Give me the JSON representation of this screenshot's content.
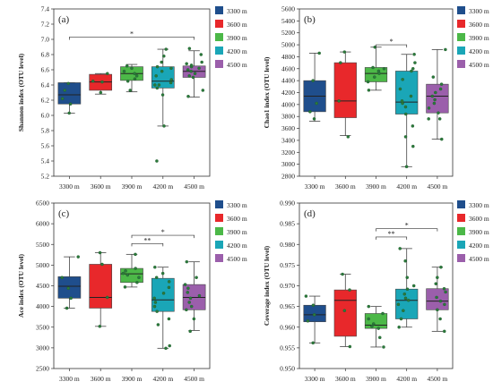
{
  "chart_data": [
    {
      "type": "box",
      "panel_label": "(a)",
      "ylabel": "Shannon index (OTU level)",
      "categories": [
        "3300 m",
        "3600 m",
        "3900 m",
        "4200 m",
        "4500 m"
      ],
      "colors": [
        "#1f4e8c",
        "#e8282b",
        "#4cb848",
        "#1aa6b7",
        "#9b5fab"
      ],
      "ylim": [
        5.2,
        7.4
      ],
      "yticks": [
        5.2,
        5.4,
        5.6,
        5.8,
        6.0,
        6.2,
        6.4,
        6.6,
        6.8,
        7.0,
        7.2,
        7.4
      ],
      "tick_decimals": 1,
      "boxes": [
        {
          "q1": 6.15,
          "median": 6.27,
          "q3": 6.43,
          "lo": 6.03,
          "hi": 6.43
        },
        {
          "q1": 6.33,
          "median": 6.44,
          "q3": 6.54,
          "lo": 6.28,
          "hi": 6.55
        },
        {
          "q1": 6.46,
          "median": 6.55,
          "q3": 6.64,
          "lo": 6.31,
          "hi": 6.67
        },
        {
          "q1": 6.36,
          "median": 6.45,
          "q3": 6.64,
          "lo": 5.86,
          "hi": 6.87
        },
        {
          "q1": 6.5,
          "median": 6.58,
          "q3": 6.65,
          "lo": 6.24,
          "hi": 6.85
        }
      ],
      "points": [
        [
          6.03,
          6.15,
          6.22,
          6.33,
          6.42
        ],
        [
          6.3,
          6.45,
          6.55,
          6.44
        ],
        [
          6.33,
          6.45,
          6.52,
          6.55,
          6.58,
          6.62,
          6.65,
          6.48
        ],
        [
          5.4,
          5.86,
          6.27,
          6.36,
          6.4,
          6.43,
          6.47,
          6.52,
          6.58,
          6.62,
          6.64,
          6.7,
          6.78,
          6.87,
          6.4
        ],
        [
          6.25,
          6.33,
          6.5,
          6.52,
          6.55,
          6.58,
          6.6,
          6.62,
          6.64,
          6.66,
          6.68,
          6.7,
          6.88,
          6.8
        ]
      ],
      "outliers": [
        [],
        [],
        [],
        [
          5.4
        ],
        []
      ],
      "brackets": [
        {
          "from": 0,
          "to": 4,
          "y": 7.03,
          "label": "*"
        }
      ],
      "legend": [
        "3300 m",
        "3600 m",
        "3900 m",
        "4200 m",
        "4500 m"
      ]
    },
    {
      "type": "box",
      "panel_label": "(b)",
      "ylabel": "Chao1 index (OTU level)",
      "categories": [
        "3300 m",
        "3600 m",
        "3900 m",
        "4200 m",
        "4500 m"
      ],
      "colors": [
        "#1f4e8c",
        "#e8282b",
        "#4cb848",
        "#1aa6b7",
        "#9b5fab"
      ],
      "ylim": [
        2800,
        5600
      ],
      "yticks": [
        2800,
        3000,
        3200,
        3400,
        3600,
        3800,
        4000,
        4200,
        4400,
        4600,
        4800,
        5000,
        5200,
        5400,
        5600
      ],
      "tick_decimals": 0,
      "boxes": [
        {
          "q1": 3880,
          "median": 4140,
          "q3": 4400,
          "lo": 3720,
          "hi": 4860
        },
        {
          "q1": 3780,
          "median": 4060,
          "q3": 4700,
          "lo": 3480,
          "hi": 4880
        },
        {
          "q1": 4380,
          "median": 4520,
          "q3": 4620,
          "lo": 4240,
          "hi": 4960
        },
        {
          "q1": 3840,
          "median": 4040,
          "q3": 4560,
          "lo": 2960,
          "hi": 4840
        },
        {
          "q1": 3860,
          "median": 4140,
          "q3": 4340,
          "lo": 3420,
          "hi": 4920
        }
      ],
      "points": [
        [
          3760,
          3880,
          4020,
          4400,
          4860
        ],
        [
          3460,
          4060,
          4700,
          4880
        ],
        [
          4240,
          4380,
          4460,
          4520,
          4560,
          4600,
          4620,
          4960
        ],
        [
          2960,
          3460,
          3640,
          3840,
          3960,
          4020,
          4060,
          4140,
          4260,
          4420,
          4560,
          4600,
          4700,
          4840,
          3300
        ],
        [
          3420,
          3760,
          3860,
          3940,
          4020,
          4080,
          4140,
          4200,
          4260,
          4340,
          4460,
          4920,
          3760
        ]
      ],
      "outliers": [
        [],
        [],
        [],
        [],
        []
      ],
      "brackets": [
        {
          "from": 2,
          "to": 3,
          "y": 5000,
          "label": "*"
        }
      ],
      "legend": [
        "3300 m",
        "3600 m",
        "3900 m",
        "4200 m",
        "4500 m"
      ]
    },
    {
      "type": "box",
      "panel_label": "(c)",
      "ylabel": "Ace index (OTU level)",
      "categories": [
        "3300 m",
        "3600 m",
        "3900 m",
        "4200 m",
        "4500 m"
      ],
      "colors": [
        "#1f4e8c",
        "#e8282b",
        "#4cb848",
        "#1aa6b7",
        "#9b5fab"
      ],
      "ylim": [
        2500,
        6500
      ],
      "yticks": [
        2500,
        3000,
        3500,
        4000,
        4500,
        5000,
        5500,
        6000,
        6500
      ],
      "tick_decimals": 0,
      "boxes": [
        {
          "q1": 4200,
          "median": 4490,
          "q3": 4720,
          "lo": 3960,
          "hi": 5200
        },
        {
          "q1": 3960,
          "median": 4220,
          "q3": 5020,
          "lo": 3520,
          "hi": 5300
        },
        {
          "q1": 4580,
          "median": 4790,
          "q3": 4920,
          "lo": 4470,
          "hi": 5260
        },
        {
          "q1": 3880,
          "median": 4160,
          "q3": 4680,
          "lo": 2990,
          "hi": 4950
        },
        {
          "q1": 3920,
          "median": 4220,
          "q3": 4530,
          "lo": 3420,
          "hi": 5080
        }
      ],
      "points": [
        [
          3960,
          4200,
          4440,
          4700,
          5200
        ],
        [
          3520,
          4220,
          5020,
          5300
        ],
        [
          4470,
          4580,
          4700,
          4760,
          4800,
          4860,
          4920,
          5260
        ],
        [
          2990,
          3050,
          3560,
          3700,
          3880,
          4000,
          4100,
          4200,
          4320,
          4460,
          4600,
          4700,
          4800,
          4950
        ],
        [
          3400,
          3700,
          3920,
          4000,
          4100,
          4200,
          4260,
          4340,
          4440,
          4530,
          4700,
          5080
        ]
      ],
      "outliers": [
        [],
        [],
        [],
        [],
        []
      ],
      "brackets": [
        {
          "from": 2,
          "to": 3,
          "y": 5520,
          "label": "**"
        },
        {
          "from": 2,
          "to": 4,
          "y": 5720,
          "label": "*"
        }
      ],
      "legend": [
        "3300 m",
        "3600 m",
        "3900 m",
        "4200 m",
        "4500 m"
      ]
    },
    {
      "type": "box",
      "panel_label": "(d)",
      "ylabel": "Coverage index (OTU level)",
      "categories": [
        "3300 m",
        "3600 m",
        "3900 m",
        "4200 m",
        "4500 m"
      ],
      "colors": [
        "#1f4e8c",
        "#e8282b",
        "#4cb848",
        "#1aa6b7",
        "#9b5fab"
      ],
      "ylim": [
        0.95,
        0.99
      ],
      "yticks": [
        0.95,
        0.955,
        0.96,
        0.965,
        0.97,
        0.975,
        0.98,
        0.985,
        0.99
      ],
      "tick_decimals": 3,
      "boxes": [
        {
          "q1": 0.9613,
          "median": 0.963,
          "q3": 0.9653,
          "lo": 0.9562,
          "hi": 0.9675
        },
        {
          "q1": 0.9578,
          "median": 0.9665,
          "q3": 0.969,
          "lo": 0.9553,
          "hi": 0.9728
        },
        {
          "q1": 0.9597,
          "median": 0.9605,
          "q3": 0.9633,
          "lo": 0.9552,
          "hi": 0.965
        },
        {
          "q1": 0.962,
          "median": 0.9665,
          "q3": 0.9692,
          "lo": 0.96,
          "hi": 0.979
        },
        {
          "q1": 0.9642,
          "median": 0.9663,
          "q3": 0.9693,
          "lo": 0.959,
          "hi": 0.9745
        }
      ],
      "points": [
        [
          0.9562,
          0.9615,
          0.963,
          0.9653,
          0.9675
        ],
        [
          0.9553,
          0.964,
          0.969,
          0.9728
        ],
        [
          0.9552,
          0.9575,
          0.9597,
          0.9602,
          0.9608,
          0.962,
          0.9633,
          0.965
        ],
        [
          0.96,
          0.962,
          0.964,
          0.9655,
          0.9665,
          0.967,
          0.968,
          0.9692,
          0.97,
          0.972,
          0.976,
          0.979
        ],
        [
          0.959,
          0.962,
          0.9642,
          0.9655,
          0.9663,
          0.9672,
          0.9685,
          0.9693,
          0.9705,
          0.972,
          0.9745
        ]
      ],
      "outliers": [
        [],
        [],
        [],
        [],
        []
      ],
      "brackets": [
        {
          "from": 2,
          "to": 3,
          "y": 0.9818,
          "label": "**"
        },
        {
          "from": 2,
          "to": 4,
          "y": 0.9838,
          "label": "*"
        }
      ],
      "legend": [
        "3300 m",
        "3600 m",
        "3900 m",
        "4200 m",
        "4500 m"
      ]
    }
  ]
}
